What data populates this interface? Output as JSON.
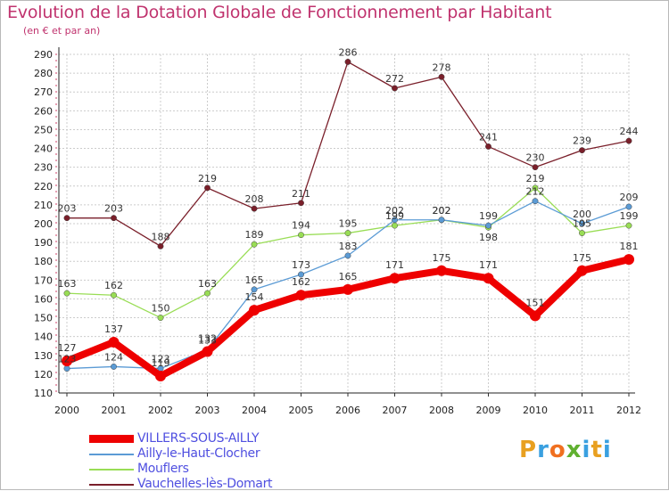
{
  "title": "Evolution de la Dotation Globale de Fonctionnement par Habitant",
  "subtitle": "(en € et par an)",
  "logo_letters": [
    "P",
    "r",
    "o",
    "x",
    "i",
    "t",
    "i"
  ],
  "logo_colors": [
    "#e8a020",
    "#3aa0e0",
    "#f07020",
    "#60b030",
    "#3aa0e0",
    "#e8a020",
    "#3aa0e0"
  ],
  "chart_data": {
    "type": "line",
    "title": "Evolution de la Dotation Globale de Fonctionnement par Habitant",
    "ylabel": "(en € et par an)",
    "xlabel": "",
    "categories": [
      "2000",
      "2001",
      "2002",
      "2003",
      "2004",
      "2005",
      "2006",
      "2007",
      "2008",
      "2009",
      "2010",
      "2011",
      "2012"
    ],
    "ylim": [
      110,
      290
    ],
    "yticks": [
      110,
      120,
      130,
      140,
      150,
      160,
      170,
      180,
      190,
      200,
      210,
      220,
      230,
      240,
      250,
      260,
      270,
      280,
      290
    ],
    "grid": true,
    "series": [
      {
        "name": "Vauchelles-lès-Domart",
        "color": "#7a1f2a",
        "values": [
          203,
          203,
          188,
          219,
          208,
          211,
          286,
          272,
          278,
          241,
          230,
          239,
          244
        ]
      },
      {
        "name": "Mouflers",
        "color": "#99dd55",
        "values": [
          163,
          162,
          150,
          163,
          189,
          194,
          195,
          199,
          202,
          198,
          219,
          195,
          199
        ]
      },
      {
        "name": "Ailly-le-Haut-Clocher",
        "color": "#5b9bd5",
        "values": [
          123,
          124,
          123,
          133,
          165,
          173,
          183,
          202,
          202,
          199,
          212,
          200,
          209
        ]
      },
      {
        "name": "VILLERS-SOUS-AILLY",
        "color": "#ee0000",
        "values": [
          127,
          137,
          119,
          132,
          154,
          162,
          165,
          171,
          175,
          171,
          151,
          175,
          181
        ]
      }
    ]
  },
  "legend": [
    {
      "name": "VILLERS-SOUS-AILLY",
      "color": "#ee0000"
    },
    {
      "name": "Ailly-le-Haut-Clocher",
      "color": "#5b9bd5"
    },
    {
      "name": "Mouflers",
      "color": "#99dd55"
    },
    {
      "name": "Vauchelles-lès-Domart",
      "color": "#7a1f2a"
    }
  ]
}
